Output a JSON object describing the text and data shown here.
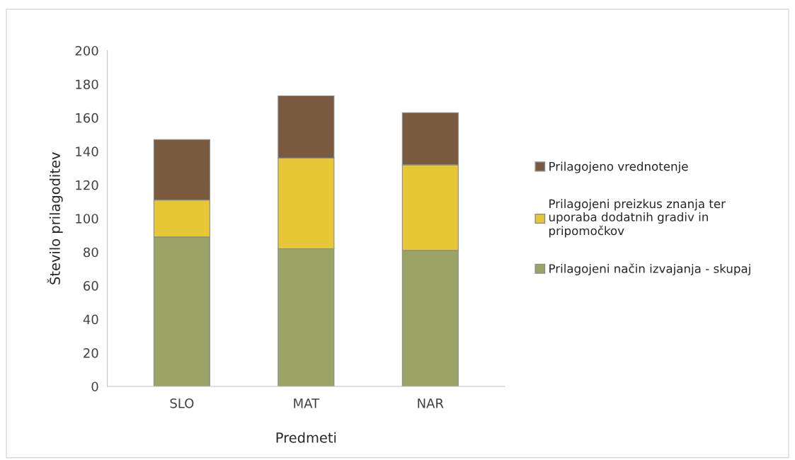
{
  "chart_data": {
    "type": "bar",
    "stacked": true,
    "xlabel": "Predmeti",
    "ylabel": "Število prilagoditev",
    "categories": [
      "SLO",
      "MAT",
      "NAR"
    ],
    "series": [
      {
        "name": "Prilagojeni način izvajanja - skupaj",
        "color": "#9ba466",
        "values": [
          89,
          82,
          81
        ]
      },
      {
        "name": "Prilagojeni preizkus znanja ter\nuporaba dodatnih gradiv in\npripomočkov",
        "color": "#e6c837",
        "values": [
          22,
          54,
          51
        ]
      },
      {
        "name": "Prilagojeno vrednotenje",
        "color": "#7a5a3e",
        "values": [
          36,
          37,
          31
        ]
      }
    ],
    "ylim": [
      0,
      200
    ],
    "yticks": [
      0,
      20,
      40,
      60,
      80,
      100,
      120,
      140,
      160,
      180,
      200
    ],
    "grid": false,
    "legend": "right"
  }
}
